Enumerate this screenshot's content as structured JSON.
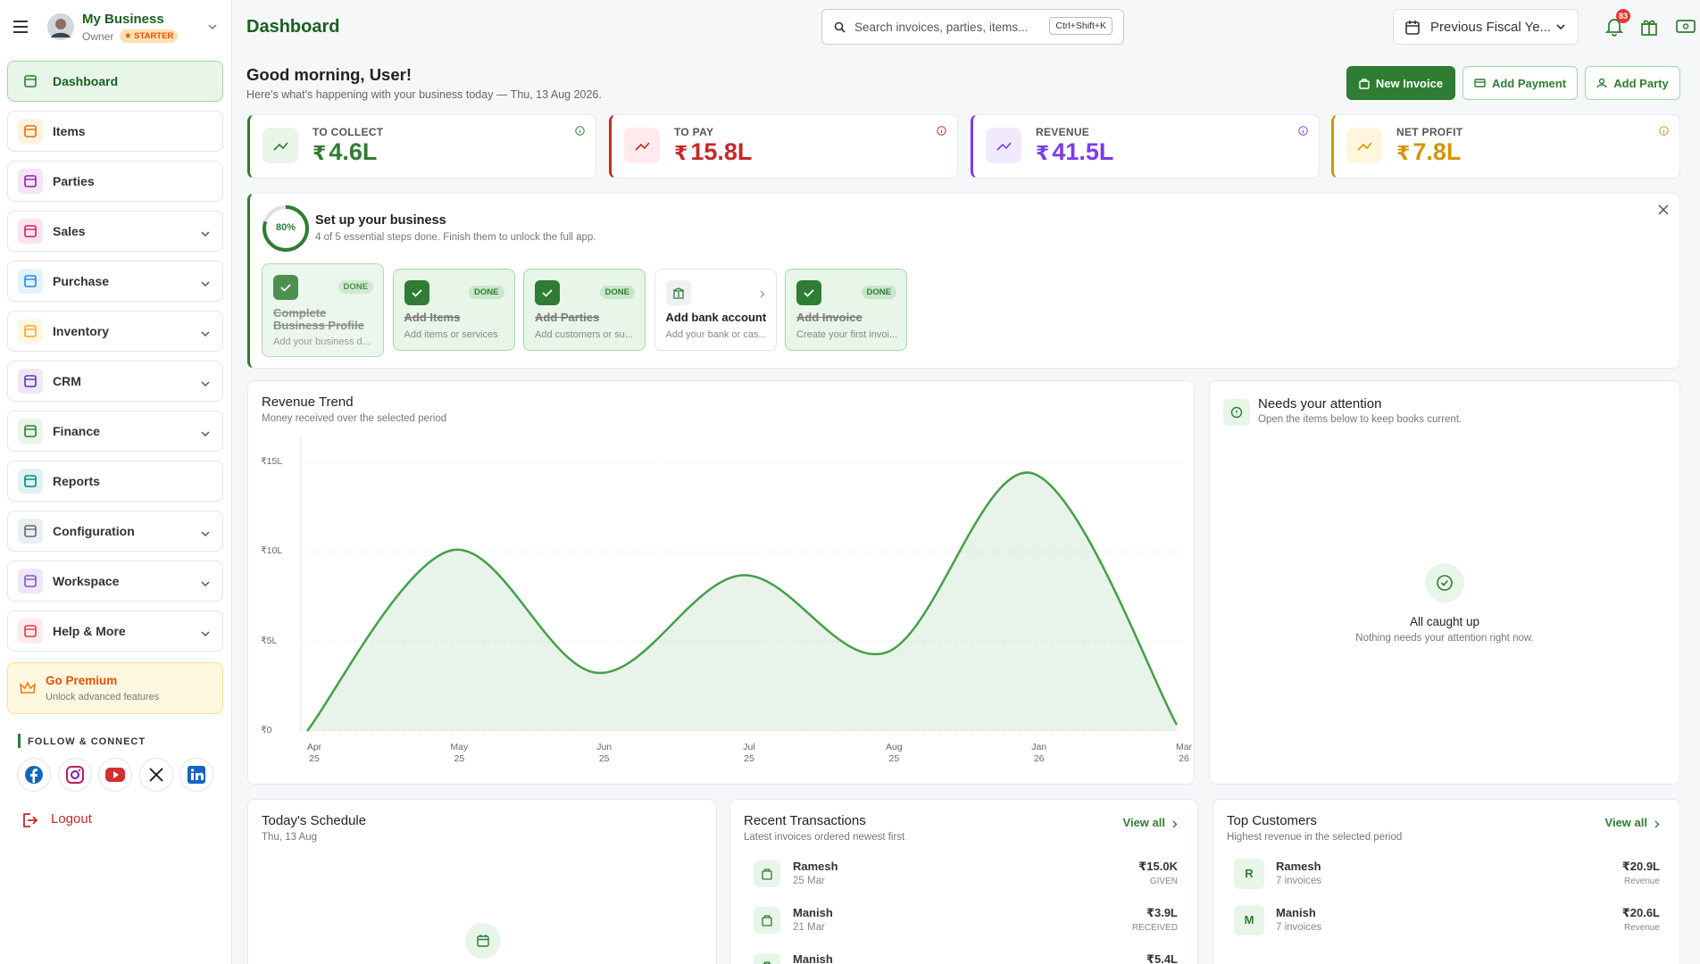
{
  "sidebar": {
    "business_name": "My Business",
    "role": "Owner",
    "plan": "★ STARTER",
    "nav": [
      {
        "label": "Dashboard",
        "expandable": false,
        "active": true
      },
      {
        "label": "Items",
        "expandable": false
      },
      {
        "label": "Parties",
        "expandable": false
      },
      {
        "label": "Sales",
        "expandable": true
      },
      {
        "label": "Purchase",
        "expandable": true
      },
      {
        "label": "Inventory",
        "expandable": true
      },
      {
        "label": "CRM",
        "expandable": true
      },
      {
        "label": "Finance",
        "expandable": true
      },
      {
        "label": "Reports",
        "expandable": false
      },
      {
        "label": "Configuration",
        "expandable": true
      },
      {
        "label": "Workspace",
        "expandable": true
      },
      {
        "label": "Help & More",
        "expandable": true
      }
    ],
    "premium": {
      "title": "Go Premium",
      "subtitle": "Unlock advanced features"
    },
    "follow_heading": "FOLLOW & CONNECT",
    "logout": "Logout"
  },
  "header": {
    "title": "Dashboard",
    "search_placeholder": "Search invoices, parties, items...",
    "search_shortcut": "Ctrl+Shift+K",
    "period": "Previous Fiscal Ye...",
    "notification_count": 83
  },
  "greeting": {
    "title": "Good morning, User!",
    "subtitle": "Here's what's happening with your business today — Thu, 13 Aug 2026."
  },
  "actions": [
    "New Invoice",
    "Add Payment",
    "Add Party"
  ],
  "kpis": [
    {
      "label": "TO COLLECT",
      "symbol": "₹",
      "amount": "4.6L"
    },
    {
      "label": "TO PAY",
      "symbol": "₹",
      "amount": "15.8L"
    },
    {
      "label": "REVENUE",
      "symbol": "₹",
      "amount": "41.5L"
    },
    {
      "label": "NET PROFIT",
      "symbol": "₹",
      "amount": "7.8L"
    }
  ],
  "setup": {
    "progress": {
      "value": 80,
      "label": "80%"
    },
    "title": "Set up your business",
    "subtitle": "4 of 5 essential steps done. Finish them to unlock the full app.",
    "steps": [
      {
        "title": "Complete Business Profile",
        "description": "Add your business d...",
        "status": "DONE"
      },
      {
        "title": "Add Items",
        "description": "Add items or services",
        "status": "DONE"
      },
      {
        "title": "Add Parties",
        "description": "Add customers or su...",
        "status": "DONE"
      },
      {
        "title": "Add bank account",
        "description": "Add your bank or cas..."
      },
      {
        "title": "Add Invoice",
        "description": "Create your first invoi...",
        "status": "DONE"
      }
    ]
  },
  "chart_data": {
    "type": "area",
    "title": "Revenue Trend",
    "subtitle": "Money received over the selected period",
    "categories": [
      "Apr\n25",
      "May\n25",
      "Jun\n25",
      "Jul\n25",
      "Aug\n25",
      "Jan\n26",
      "Mar\n26"
    ],
    "values": [
      0,
      1010000,
      325000,
      870000,
      440000,
      1440000,
      35000
    ],
    "color": "#43a047",
    "ylim": [
      0,
      1600000
    ],
    "yticks": [
      {
        "value": 0,
        "label": "₹0"
      },
      {
        "value": 500000,
        "label": "₹5L"
      },
      {
        "value": 1000000,
        "label": "₹10L"
      },
      {
        "value": 1500000,
        "label": "₹15L"
      }
    ],
    "grid": true
  },
  "attention": {
    "title": "Needs your attention",
    "subtitle": "Open the items below to keep books current.",
    "empty_title": "All caught up",
    "empty_subtitle": "Nothing needs your attention right now."
  },
  "schedule": {
    "title": "Today's Schedule",
    "date": "Thu, 13 Aug"
  },
  "transactions": {
    "title": "Recent Transactions",
    "subtitle": "Latest invoices ordered newest first",
    "view_all": "View all",
    "rows": [
      {
        "name": "Ramesh",
        "date": "25 Mar",
        "amount": "₹15.0K",
        "type": "GIVEN"
      },
      {
        "name": "Manish",
        "date": "21 Mar",
        "amount": "₹3.9L",
        "type": "RECEIVED"
      },
      {
        "name": "Manish",
        "amount": "₹5.4L"
      }
    ]
  },
  "customers": {
    "title": "Top Customers",
    "subtitle": "Highest revenue in the selected period",
    "view_all": "View all",
    "rows": [
      {
        "initial": "R",
        "name": "Ramesh",
        "invoices": "7 invoices",
        "amount": "₹20.9L",
        "metric": "Revenue"
      },
      {
        "initial": "M",
        "name": "Manish",
        "invoices": "7 invoices",
        "amount": "₹20.6L",
        "metric": "Revenue"
      }
    ]
  }
}
